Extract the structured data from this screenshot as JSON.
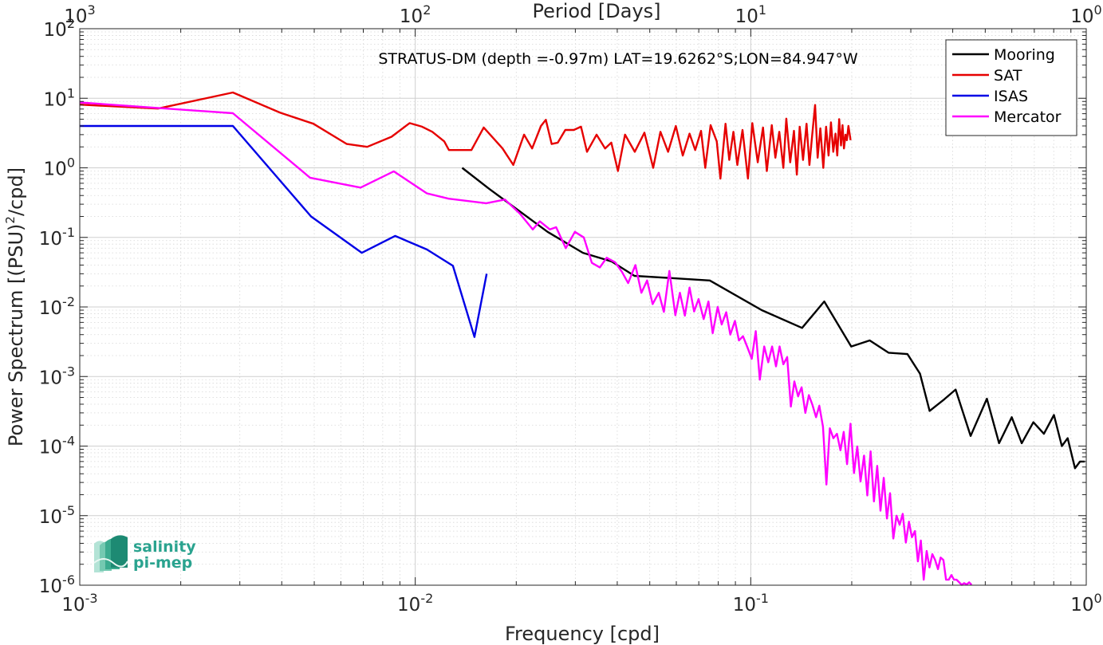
{
  "chart_data": {
    "type": "line",
    "title": "STRATUS-DM (depth =-0.97m) LAT=19.6262°S;LON=84.947°W",
    "xlabel": "Frequency [cpd]",
    "ylabel": "Power Spectrum [(PSU)",
    "ylabel_sup": "2",
    "ylabel_tail": "/cpd]",
    "top_xlabel": "Period [Days]",
    "xscale": "log",
    "yscale": "log",
    "xlim": [
      0.001,
      1
    ],
    "ylim": [
      1e-06,
      100
    ],
    "grid": true,
    "legend_position": "top-right",
    "x_ticks": [
      {
        "value": 0.001,
        "base": "10",
        "exp": "-3"
      },
      {
        "value": 0.01,
        "base": "10",
        "exp": "-2"
      },
      {
        "value": 0.1,
        "base": "10",
        "exp": "-1"
      },
      {
        "value": 1,
        "base": "10",
        "exp": "0"
      }
    ],
    "top_ticks": [
      {
        "value": 0.001,
        "base": "10",
        "exp": "3"
      },
      {
        "value": 0.01,
        "base": "10",
        "exp": "2"
      },
      {
        "value": 0.1,
        "base": "10",
        "exp": "1"
      },
      {
        "value": 1,
        "base": "10",
        "exp": "0"
      }
    ],
    "y_ticks": [
      {
        "value": 1e-06,
        "base": "10",
        "exp": "-6"
      },
      {
        "value": 1e-05,
        "base": "10",
        "exp": "-5"
      },
      {
        "value": 0.0001,
        "base": "10",
        "exp": "-4"
      },
      {
        "value": 0.001,
        "base": "10",
        "exp": "-3"
      },
      {
        "value": 0.01,
        "base": "10",
        "exp": "-2"
      },
      {
        "value": 0.1,
        "base": "10",
        "exp": "-1"
      },
      {
        "value": 1,
        "base": "10",
        "exp": "0"
      },
      {
        "value": 10,
        "base": "10",
        "exp": "1"
      },
      {
        "value": 100,
        "base": "10",
        "exp": "2"
      }
    ],
    "series": [
      {
        "name": "Mooring",
        "color": "#000000",
        "x": [
          0.0138,
          0.0166,
          0.0248,
          0.0316,
          0.0385,
          0.045,
          0.0581,
          0.0755,
          0.1078,
          0.1422,
          0.1656,
          0.1993,
          0.2262,
          0.2574,
          0.2931,
          0.3194,
          0.3412,
          0.3772,
          0.4079,
          0.4523,
          0.5055,
          0.5497,
          0.5997,
          0.6423,
          0.6958,
          0.7479,
          0.8012,
          0.8457,
          0.8801,
          0.9258,
          0.9583,
          0.9898
        ],
        "y": [
          1.0,
          0.5,
          0.12,
          0.06,
          0.045,
          0.028,
          0.026,
          0.024,
          0.009,
          0.005,
          0.012,
          0.0027,
          0.0033,
          0.0022,
          0.0021,
          0.0011,
          0.00032,
          0.00047,
          0.00065,
          0.00014,
          0.00048,
          0.00011,
          0.00026,
          0.00011,
          0.00022,
          0.00015,
          0.00028,
          0.0001,
          0.00013,
          4.8e-05,
          6e-05,
          6e-05
        ]
      },
      {
        "name": "SAT",
        "color": "#e60000",
        "x": [
          0.001,
          0.00171,
          0.00286,
          0.00396,
          0.00497,
          0.00625,
          0.00719,
          0.0085,
          0.00962,
          0.01048,
          0.01124,
          0.0122,
          0.0126,
          0.013,
          0.0147,
          0.016,
          0.0173,
          0.0182,
          0.0196,
          0.0211,
          0.0223,
          0.0237,
          0.0245,
          0.0255,
          0.0266,
          0.028,
          0.0297,
          0.0312,
          0.0325,
          0.0347,
          0.0368,
          0.0384,
          0.0402,
          0.0422,
          0.0451,
          0.0482,
          0.0512,
          0.0538,
          0.0567,
          0.0598,
          0.0627,
          0.0657,
          0.0683,
          0.0711,
          0.0732,
          0.0759,
          0.0792,
          0.0812,
          0.0841,
          0.0863,
          0.0888,
          0.0912,
          0.0945,
          0.0981,
          0.1011,
          0.1049,
          0.1088,
          0.1117,
          0.1155,
          0.1184,
          0.1216,
          0.1251,
          0.1276,
          0.1311,
          0.1345,
          0.1372,
          0.1399,
          0.1432,
          0.1467,
          0.1496,
          0.1524,
          0.1555,
          0.1583,
          0.1612,
          0.1645,
          0.1677,
          0.1706,
          0.1734,
          0.1762,
          0.1789,
          0.1811,
          0.1835,
          0.1858,
          0.1877,
          0.1896,
          0.1917,
          0.1935,
          0.1955,
          0.1984
        ],
        "y": [
          8.1,
          7.1,
          12.1,
          6.2,
          4.3,
          2.2,
          2.0,
          2.8,
          4.4,
          3.9,
          3.3,
          2.4,
          1.8,
          1.8,
          1.8,
          3.8,
          2.5,
          1.9,
          1.1,
          3.0,
          1.9,
          4.0,
          4.9,
          2.2,
          2.3,
          3.5,
          3.5,
          3.9,
          1.7,
          3.0,
          1.9,
          2.3,
          0.9,
          3.0,
          1.7,
          3.2,
          1.0,
          3.3,
          1.7,
          4.0,
          1.5,
          3.1,
          1.8,
          3.4,
          1.0,
          4.1,
          2.4,
          0.7,
          4.3,
          1.3,
          3.3,
          1.1,
          3.5,
          0.7,
          4.4,
          1.2,
          3.8,
          0.9,
          4.1,
          1.4,
          3.3,
          1.0,
          5.1,
          1.2,
          3.4,
          0.8,
          3.9,
          1.3,
          4.3,
          1.1,
          2.9,
          8.0,
          1.4,
          3.7,
          1.0,
          3.9,
          1.5,
          4.5,
          1.7,
          3.1,
          1.5,
          5.0,
          2.1,
          4.1,
          1.9,
          3.0,
          2.5,
          4.0,
          2.5
        ]
      },
      {
        "name": "ISAS",
        "color": "#0000e6",
        "x": [
          0.001,
          0.00286,
          0.00489,
          0.00693,
          0.00871,
          0.01083,
          0.01295,
          0.01501,
          0.01632
        ],
        "y": [
          4.0,
          4.0,
          0.2,
          0.06,
          0.105,
          0.067,
          0.039,
          0.0037,
          0.03
        ]
      },
      {
        "name": "Mercator",
        "color": "#ff00ff",
        "x": [
          0.001,
          0.00286,
          0.00486,
          0.00687,
          0.00863,
          0.01083,
          0.01257,
          0.01627,
          0.0185,
          0.0205,
          0.0224,
          0.0235,
          0.0252,
          0.0263,
          0.0281,
          0.0299,
          0.0318,
          0.0336,
          0.0355,
          0.0372,
          0.0394,
          0.0413,
          0.0431,
          0.0453,
          0.0472,
          0.0491,
          0.051,
          0.0532,
          0.0551,
          0.0572,
          0.0596,
          0.0615,
          0.0636,
          0.0657,
          0.0678,
          0.0699,
          0.0724,
          0.0748,
          0.077,
          0.0797,
          0.0819,
          0.0845,
          0.0869,
          0.0897,
          0.0922,
          0.0948,
          0.0978,
          0.1007,
          0.1035,
          0.1064,
          0.1097,
          0.1128,
          0.1158,
          0.1189,
          0.1219,
          0.1251,
          0.1284,
          0.1317,
          0.1349,
          0.1384,
          0.1418,
          0.1455,
          0.149,
          0.1527,
          0.1565,
          0.1601,
          0.1642,
          0.1681,
          0.1721,
          0.1763,
          0.1807,
          0.1851,
          0.1893,
          0.1937,
          0.1983,
          0.2031,
          0.2077,
          0.2125,
          0.2176,
          0.2226,
          0.2276,
          0.2329,
          0.2382,
          0.2436,
          0.2491,
          0.2546,
          0.2601,
          0.266,
          0.2719,
          0.2778,
          0.2838,
          0.29,
          0.2961,
          0.3023,
          0.3086,
          0.3149,
          0.3213,
          0.3278,
          0.3345,
          0.3409,
          0.3477,
          0.3545,
          0.3614,
          0.3681,
          0.3752,
          0.3821,
          0.3892,
          0.3962,
          0.4035,
          0.4106,
          0.4181,
          0.4255,
          0.4326,
          0.4402,
          0.4478,
          0.4552
        ],
        "y": [
          8.7,
          6.1,
          0.72,
          0.52,
          0.89,
          0.43,
          0.36,
          0.31,
          0.35,
          0.22,
          0.13,
          0.17,
          0.13,
          0.14,
          0.07,
          0.12,
          0.1,
          0.043,
          0.037,
          0.051,
          0.044,
          0.032,
          0.022,
          0.04,
          0.016,
          0.024,
          0.011,
          0.016,
          0.0085,
          0.033,
          0.0076,
          0.016,
          0.0075,
          0.019,
          0.0086,
          0.013,
          0.0067,
          0.012,
          0.0042,
          0.01,
          0.0056,
          0.0084,
          0.004,
          0.0063,
          0.0033,
          0.0038,
          0.0026,
          0.0018,
          0.0045,
          0.0009,
          0.0027,
          0.0016,
          0.0027,
          0.0014,
          0.0027,
          0.0015,
          0.0019,
          0.00037,
          0.00085,
          0.00052,
          0.0007,
          0.0003,
          0.00054,
          0.00039,
          0.00026,
          0.00038,
          0.00019,
          2.8e-05,
          0.00018,
          0.00013,
          0.00015,
          8.7e-05,
          0.00016,
          5.5e-05,
          0.00021,
          4.1e-05,
          9.9e-05,
          3.1e-05,
          7.3e-05,
          1.95e-05,
          8.4e-05,
          1.6e-05,
          5.2e-05,
          1.18e-05,
          3.5e-05,
          9.1e-06,
          2.1e-05,
          4.7e-06,
          1e-05,
          7.4e-06,
          1.06e-05,
          4.1e-06,
          8.2e-06,
          4.9e-06,
          6e-06,
          2.2e-06,
          4.4e-06,
          1.2e-06,
          3.1e-06,
          1.8e-06,
          2.8e-06,
          2.3e-06,
          1.7e-06,
          2.5e-06,
          2.3e-06,
          1.2e-06,
          1.2e-06,
          1.4e-06,
          1.2e-06,
          1.2e-06,
          1.1e-06,
          1.01e-06,
          1.07e-06,
          1.02e-06,
          1.1e-06,
          1.01e-06
        ]
      }
    ]
  },
  "logo": {
    "line1": "salinity",
    "line2": "pi-mep"
  }
}
